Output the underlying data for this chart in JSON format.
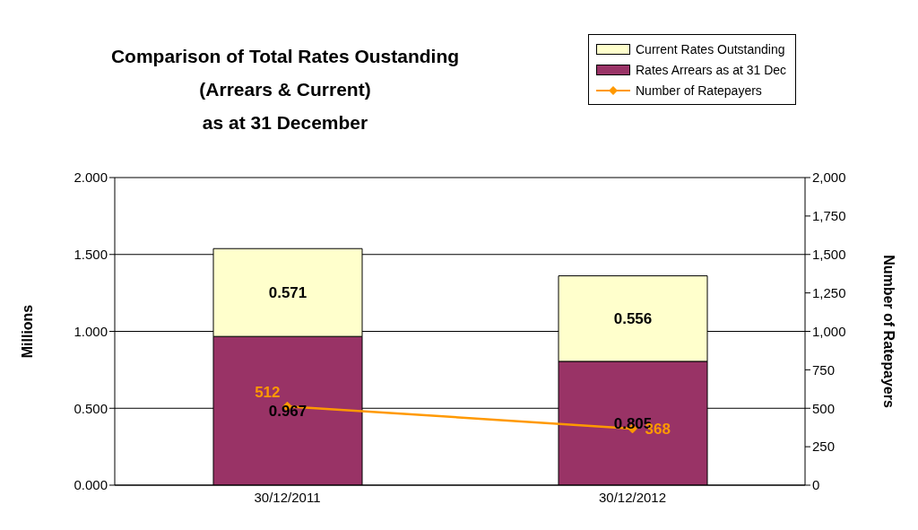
{
  "chart_data": {
    "type": "bar",
    "title": "Comparison of Total Rates Oustanding\n(Arrears & Current)\nas at 31 December",
    "ylabel": "Millions",
    "y2label": "Number of Ratepayers",
    "categories": [
      "30/12/2011",
      "30/12/2012"
    ],
    "stacked": true,
    "series": [
      {
        "name": "Rates Arrears as at 31 Dec",
        "color": "#993366",
        "values": [
          0.967,
          0.805
        ]
      },
      {
        "name": "Current Rates Outstanding",
        "color": "#ffffcc",
        "values": [
          0.571,
          0.556
        ]
      },
      {
        "name": "Number of Ratepayers",
        "type": "line",
        "axis": "y2",
        "color": "#ff9900",
        "marker": "diamond",
        "values": [
          512,
          368
        ]
      }
    ],
    "ylim": [
      0,
      2
    ],
    "yticks": [
      {
        "value": 0,
        "label": "0.000"
      },
      {
        "value": 0.5,
        "label": "0.500"
      },
      {
        "value": 1,
        "label": "1.000"
      },
      {
        "value": 1.5,
        "label": "1.500"
      },
      {
        "value": 2,
        "label": "2.000"
      }
    ],
    "y2lim": [
      0,
      2000
    ],
    "y2ticks": [
      0,
      250,
      500,
      750,
      {
        "value": 1000,
        "label": "1,000"
      },
      {
        "value": 1250,
        "label": "1,250"
      },
      {
        "value": 1500,
        "label": "1,500"
      },
      {
        "value": 1750,
        "label": "1,750"
      },
      {
        "value": 2000,
        "label": "2,000"
      }
    ],
    "grid": "y",
    "legend": "top right",
    "data_labels": true
  }
}
